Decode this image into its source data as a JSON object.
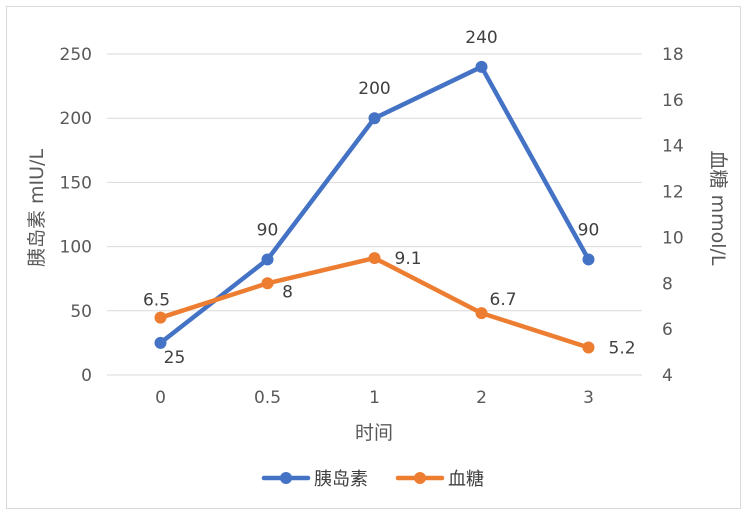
{
  "chart_data": {
    "type": "line",
    "title": "",
    "categories": [
      "0",
      "0.5",
      "1",
      "2",
      "3"
    ],
    "xlabel": "时间",
    "ylabel_left": "胰岛素 mIU/L",
    "ylabel_right": "血糖 mmol/L",
    "ylim_left": [
      0,
      250
    ],
    "yticks_left": [
      "0",
      "50",
      "100",
      "150",
      "200",
      "250"
    ],
    "ylim_right": [
      4,
      18
    ],
    "yticks_right": [
      "4",
      "6",
      "8",
      "10",
      "12",
      "14",
      "16",
      "18"
    ],
    "grid": true,
    "legend_position": "bottom",
    "series": [
      {
        "name": "胰岛素",
        "axis": "left",
        "color": "#4472C4",
        "values": [
          25,
          90,
          200,
          240,
          90
        ],
        "labels": [
          "25",
          "90",
          "200",
          "240",
          "90"
        ]
      },
      {
        "name": "血糖",
        "axis": "right",
        "color": "#ED7D31",
        "values": [
          6.5,
          8,
          9.1,
          6.7,
          5.2
        ],
        "labels": [
          "6.5",
          "8",
          "9.1",
          "6.7",
          "5.2"
        ]
      }
    ]
  }
}
